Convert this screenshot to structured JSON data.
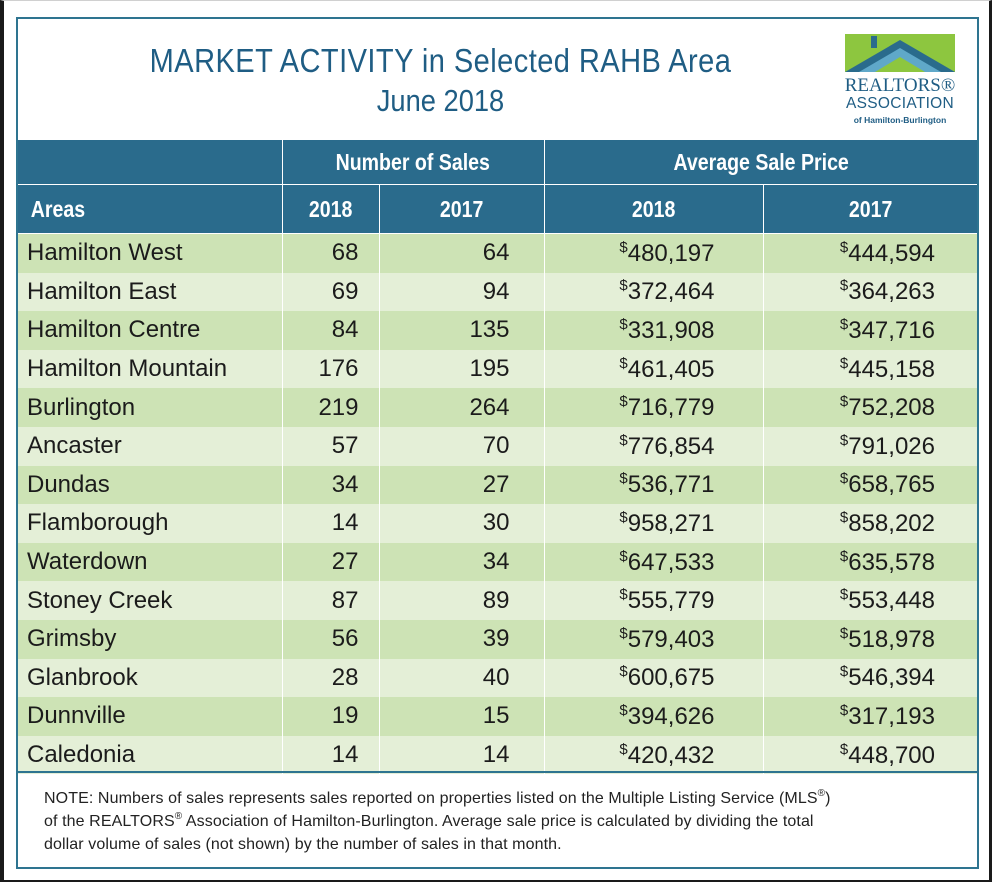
{
  "header": {
    "title_line1": "MARKET ACTIVITY in Selected RAHB Area",
    "title_line2": "June 2018"
  },
  "logo": {
    "line1": "REALTORS®",
    "line2": "ASSOCIATION",
    "line3": "of Hamilton-Burlington",
    "colors": {
      "green": "#8dc63f",
      "blue": "#2a6b8c",
      "light_blue": "#5fa8c9"
    }
  },
  "colors": {
    "header_blue": "#2a6b8c",
    "row_green_dark": "#cde3b5",
    "row_green_light": "#e4efd7",
    "title_blue": "#1f5d84"
  },
  "chart_data": {
    "type": "table",
    "group_headers": [
      "Number of Sales",
      "Average Sale Price"
    ],
    "columns": [
      "Areas",
      "2018",
      "2017",
      "2018",
      "2017"
    ],
    "rows": [
      {
        "area": "Hamilton West",
        "sales_2018": "68",
        "sales_2017": "64",
        "price_2018": "480,197",
        "price_2017": "444,594"
      },
      {
        "area": "Hamilton East",
        "sales_2018": "69",
        "sales_2017": "94",
        "price_2018": "372,464",
        "price_2017": "364,263"
      },
      {
        "area": "Hamilton Centre",
        "sales_2018": "84",
        "sales_2017": "135",
        "price_2018": "331,908",
        "price_2017": "347,716"
      },
      {
        "area": "Hamilton Mountain",
        "sales_2018": "176",
        "sales_2017": "195",
        "price_2018": "461,405",
        "price_2017": "445,158"
      },
      {
        "area": "Burlington",
        "sales_2018": "219",
        "sales_2017": "264",
        "price_2018": "716,779",
        "price_2017": "752,208"
      },
      {
        "area": "Ancaster",
        "sales_2018": "57",
        "sales_2017": "70",
        "price_2018": "776,854",
        "price_2017": "791,026"
      },
      {
        "area": "Dundas",
        "sales_2018": "34",
        "sales_2017": "27",
        "price_2018": "536,771",
        "price_2017": "658,765"
      },
      {
        "area": "Flamborough",
        "sales_2018": "14",
        "sales_2017": "30",
        "price_2018": "958,271",
        "price_2017": "858,202"
      },
      {
        "area": "Waterdown",
        "sales_2018": "27",
        "sales_2017": "34",
        "price_2018": "647,533",
        "price_2017": "635,578"
      },
      {
        "area": "Stoney Creek",
        "sales_2018": "87",
        "sales_2017": "89",
        "price_2018": "555,779",
        "price_2017": "553,448"
      },
      {
        "area": "Grimsby",
        "sales_2018": "56",
        "sales_2017": "39",
        "price_2018": "579,403",
        "price_2017": "518,978"
      },
      {
        "area": "Glanbrook",
        "sales_2018": "28",
        "sales_2017": "40",
        "price_2018": "600,675",
        "price_2017": "546,394"
      },
      {
        "area": "Dunnville",
        "sales_2018": "19",
        "sales_2017": "15",
        "price_2018": "394,626",
        "price_2017": "317,193"
      },
      {
        "area": "Caledonia",
        "sales_2018": "14",
        "sales_2017": "14",
        "price_2018": "420,432",
        "price_2017": "448,700"
      }
    ],
    "currency_symbol": "$"
  },
  "note": {
    "part1": "NOTE: Numbers of sales represents sales reported on properties listed on the Multiple Listing Service (MLS",
    "sup1": "®",
    "part2": ")",
    "part3": "of the REALTORS",
    "sup2": "®",
    "part4": " Association of Hamilton-Burlington. Average sale price is calculated by dividing the total",
    "part5": "dollar volume of sales (not shown) by the number of sales in that month."
  }
}
